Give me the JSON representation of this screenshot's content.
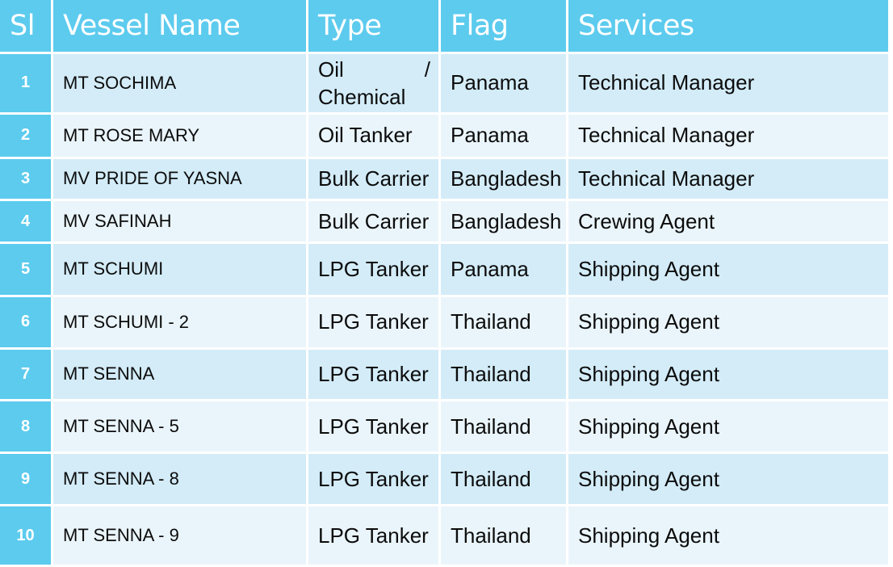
{
  "table": {
    "headers": {
      "sl": "Sl",
      "vessel": "Vessel Name",
      "type": "Type",
      "flag": "Flag",
      "services": "Services"
    },
    "rows": [
      {
        "sl": "1",
        "vessel": "MT  SOCHIMA",
        "type": "Oil / Chemical",
        "flag": "Panama",
        "services": "Technical Manager"
      },
      {
        "sl": "2",
        "vessel": "MT  ROSE MARY",
        "type": "Oil Tanker",
        "flag": "Panama",
        "services": "Technical Manager"
      },
      {
        "sl": "3",
        "vessel": "MV PRIDE OF YASNA",
        "type": "Bulk Carrier",
        "flag": "Bangladesh",
        "services": "Technical Manager"
      },
      {
        "sl": "4",
        "vessel": "MV SAFINAH",
        "type": "Bulk Carrier",
        "flag": "Bangladesh",
        "services": "Crewing Agent"
      },
      {
        "sl": "5",
        "vessel": "MT  SCHUMI",
        "type": "LPG Tanker",
        "flag": "Panama",
        "services": "Shipping Agent"
      },
      {
        "sl": "6",
        "vessel": "MT  SCHUMI - 2",
        "type": "LPG Tanker",
        "flag": "Thailand",
        "services": "Shipping Agent"
      },
      {
        "sl": "7",
        "vessel": "MT  SENNA",
        "type": "LPG Tanker",
        "flag": "Thailand",
        "services": "Shipping Agent"
      },
      {
        "sl": "8",
        "vessel": "MT  SENNA - 5",
        "type": "LPG Tanker",
        "flag": "Thailand",
        "services": "Shipping Agent"
      },
      {
        "sl": "9",
        "vessel": "MT  SENNA - 8",
        "type": "LPG Tanker",
        "flag": "Thailand",
        "services": "Shipping Agent"
      },
      {
        "sl": "10",
        "vessel": "MT  SENNA - 9",
        "type": "LPG Tanker",
        "flag": "Thailand",
        "services": "Shipping Agent"
      }
    ],
    "type_split": {
      "line1_left": "Oil",
      "line1_right": "/",
      "line2": "Chemical"
    }
  },
  "colors": {
    "header_bg": "#5ccbee",
    "row_odd": "#d3ecf8",
    "row_even": "#eaf5fb"
  }
}
